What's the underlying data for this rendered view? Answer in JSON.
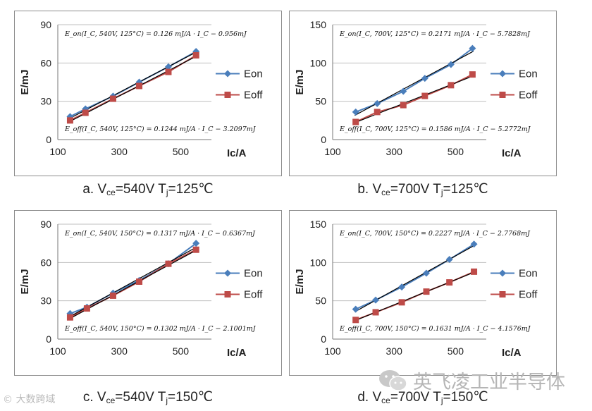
{
  "colors": {
    "eon": "#4A7EBB",
    "eoff": "#BE4B48",
    "fit": "#000000",
    "border": "#8c8c8c",
    "grid": "#bfbfbf"
  },
  "panels": [
    {
      "caption": {
        "prefix": "a. V",
        "sub1": "ce",
        "mid": "=540V T",
        "sub2": "j",
        "suffix": "=125℃"
      },
      "chart_data": {
        "type": "line",
        "xlabel": "Ic/A",
        "ylabel": "E/mJ",
        "xlim": [
          100,
          600
        ],
        "ylim": [
          0,
          90
        ],
        "xticks": [
          100,
          300,
          500
        ],
        "yticks": [
          0,
          30,
          60,
          90
        ],
        "series": [
          {
            "name": "Eon",
            "x": [
              140,
              190,
              280,
              365,
              460,
              550
            ],
            "y": [
              18,
              24,
              34,
              45,
              57,
              69
            ]
          },
          {
            "name": "Eoff",
            "x": [
              140,
              190,
              280,
              365,
              460,
              550
            ],
            "y": [
              15,
              21,
              32,
              42,
              53,
              66
            ]
          }
        ],
        "fits": [
          {
            "x0": 138,
            "y0": 16.5,
            "x1": 552,
            "y1": 68.7
          },
          {
            "x0": 138,
            "y0": 14.0,
            "x1": 552,
            "y1": 65.4
          }
        ],
        "eq_on": "E_on(I_C, 540V, 125°C) = 0.126 mJ/A · I_C − 0.956mJ",
        "eq_off": "E_off(I_C, 540V, 125°C) = 0.1244 mJ/A · I_C − 3.2097mJ"
      }
    },
    {
      "caption": {
        "prefix": "b. V",
        "sub1": "ce",
        "mid": "=700V T",
        "sub2": "j",
        "suffix": "=125℃"
      },
      "chart_data": {
        "type": "line",
        "xlabel": "Ic/A",
        "ylabel": "E/mJ",
        "xlim": [
          100,
          600
        ],
        "ylim": [
          0,
          150
        ],
        "xticks": [
          100,
          300,
          500
        ],
        "yticks": [
          0,
          50,
          100,
          150
        ],
        "series": [
          {
            "name": "Eon",
            "x": [
              175,
              245,
              330,
              400,
              485,
              555
            ],
            "y": [
              36,
              47,
              63,
              80,
              98,
              119
            ]
          },
          {
            "name": "Eoff",
            "x": [
              175,
              245,
              330,
              400,
              485,
              555
            ],
            "y": [
              23,
              36,
              45,
              57,
              71,
              85
            ]
          }
        ],
        "fits": [
          {
            "x0": 172,
            "y0": 31.6,
            "x1": 558,
            "y1": 115.3
          },
          {
            "x0": 172,
            "y0": 22.0,
            "x1": 558,
            "y1": 83.2
          }
        ],
        "eq_on": "E_on(I_C, 700V, 125°C) = 0.2171 mJ/A · I_C − 5.7828mJ",
        "eq_off": "E_off(I_C, 700V, 125°C) = 0.1586 mJ/A · I_C − 5.2772mJ"
      }
    },
    {
      "caption": {
        "prefix": "c. V",
        "sub1": "ce",
        "mid": "=540V T",
        "sub2": "j",
        "suffix": "=150℃"
      },
      "chart_data": {
        "type": "line",
        "xlabel": "Ic/A",
        "ylabel": "E/mJ",
        "xlim": [
          100,
          600
        ],
        "ylim": [
          0,
          90
        ],
        "xticks": [
          100,
          300,
          500
        ],
        "yticks": [
          0,
          30,
          60,
          90
        ],
        "series": [
          {
            "name": "Eon",
            "x": [
              140,
              195,
              280,
              365,
              460,
              550
            ],
            "y": [
              20,
              25,
              36,
              46,
              59,
              75
            ]
          },
          {
            "name": "Eoff",
            "x": [
              140,
              195,
              280,
              365,
              460,
              550
            ],
            "y": [
              17,
              24,
              34,
              45,
              59,
              70
            ]
          }
        ],
        "fits": [
          {
            "x0": 138,
            "y0": 17.5,
            "x1": 552,
            "y1": 72.1
          },
          {
            "x0": 138,
            "y0": 15.9,
            "x1": 552,
            "y1": 69.8
          }
        ],
        "eq_on": "E_on(I_C, 540V, 150°C) = 0.1317 mJ/A · I_C − 0.6367mJ",
        "eq_off": "E_off(I_C, 540V, 150°C) = 0.1302 mJ/A · I_C − 2.1001mJ"
      }
    },
    {
      "caption": {
        "prefix": "d. V",
        "sub1": "ce",
        "mid": "=700V T",
        "sub2": "j",
        "suffix": "=150℃"
      },
      "chart_data": {
        "type": "line",
        "xlabel": "Ic/A",
        "ylabel": "E/mJ",
        "xlim": [
          100,
          600
        ],
        "ylim": [
          0,
          150
        ],
        "xticks": [
          100,
          300,
          500
        ],
        "yticks": [
          0,
          50,
          100,
          150
        ],
        "series": [
          {
            "name": "Eon",
            "x": [
              175,
              240,
              325,
              405,
              480,
              560
            ],
            "y": [
              39,
              51,
              68,
              86,
              104,
              124
            ]
          },
          {
            "name": "Eoff",
            "x": [
              175,
              240,
              325,
              405,
              480,
              560
            ],
            "y": [
              25,
              35,
              48,
              62,
              74,
              88
            ]
          }
        ],
        "fits": [
          {
            "x0": 172,
            "y0": 35.5,
            "x1": 563,
            "y1": 122.6
          },
          {
            "x0": 172,
            "y0": 23.9,
            "x1": 563,
            "y1": 87.7
          }
        ],
        "eq_on": "E_on(I_C, 700V, 150°C) = 0.2227 mJ/A · I_C − 2.7768mJ",
        "eq_off": "E_off(I_C, 700V, 150°C) = 0.1631 mJ/A · I_C − 4.1576mJ"
      }
    }
  ],
  "watermark_left": "大数跨域",
  "watermark_right": "英飞凌工业半导体"
}
